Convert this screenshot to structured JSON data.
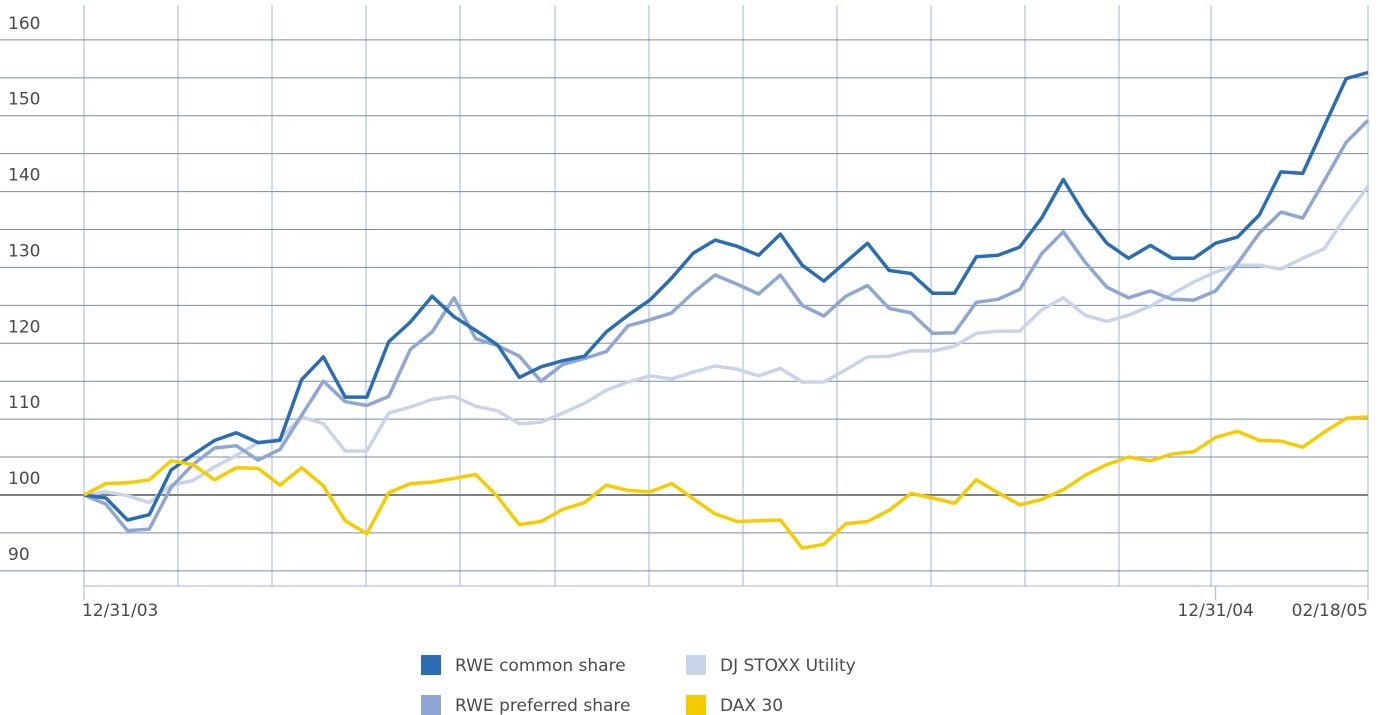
{
  "chart_data": {
    "type": "line",
    "categories": [
      "12/31/03",
      null,
      null,
      null,
      null,
      null,
      null,
      null,
      null,
      null,
      null,
      null,
      null,
      null,
      null,
      null,
      null,
      null,
      null,
      null,
      null,
      null,
      null,
      null,
      null,
      null,
      null,
      null,
      null,
      null,
      null,
      null,
      null,
      null,
      null,
      null,
      null,
      null,
      null,
      null,
      null,
      null,
      null,
      null,
      null,
      null,
      null,
      null,
      null,
      null,
      null,
      null,
      "12/31/04",
      null,
      null,
      null,
      null,
      null,
      null,
      "02/18/05"
    ],
    "series": [
      {
        "name": "RWE common share",
        "color": "#2a6db3",
        "values": [
          100,
          99.6,
          96.7,
          97.4,
          103.3,
          105.3,
          107.2,
          108.2,
          106.9,
          107.2,
          115.2,
          118.2,
          112.9,
          112.9,
          120.2,
          122.8,
          126.2,
          123.5,
          121.7,
          119.8,
          115.5,
          116.9,
          117.7,
          118.3,
          121.5,
          123.7,
          125.7,
          128.6,
          131.9,
          133.6,
          132.8,
          131.6,
          134.4,
          130.3,
          128.2,
          130.7,
          133.2,
          129.6,
          129.2,
          126.6,
          126.6,
          131.4,
          131.6,
          132.7,
          136.5,
          141.6,
          136.9,
          133.2,
          131.2,
          132.9,
          131.2,
          131.2,
          133.2,
          134.0,
          136.9,
          142.6,
          142.4,
          148.7,
          154.9,
          155.7
        ]
      },
      {
        "name": "RWE preferred share",
        "color": "#8ea6d4",
        "values": [
          100,
          98.8,
          95.3,
          95.5,
          101,
          104,
          106.2,
          106.5,
          104.6,
          106,
          110.5,
          115,
          112.3,
          111.8,
          113,
          119.2,
          121.5,
          126,
          120.6,
          119.7,
          118.3,
          115,
          117.2,
          118,
          118.9,
          122.3,
          123.1,
          124,
          126.7,
          129,
          127.8,
          126.5,
          129,
          125,
          123.6,
          126.2,
          127.6,
          124.6,
          124,
          121.3,
          121.4,
          125.4,
          125.8,
          127.1,
          131.8,
          134.7,
          130.7,
          127.4,
          126,
          126.9,
          125.8,
          125.7,
          126.9,
          130.5,
          134.5,
          137.3,
          136.5,
          141.5,
          146.5,
          149.4
        ]
      },
      {
        "name": "DJ STOXX Utility",
        "color": "#c9d4ea",
        "values": [
          100,
          100.4,
          99.9,
          99,
          101.3,
          101.9,
          103.7,
          105.2,
          106.9,
          107.4,
          110.3,
          109.4,
          105.8,
          105.8,
          110.8,
          111.6,
          112.6,
          113,
          111.7,
          111.1,
          109.4,
          109.6,
          110.8,
          112.1,
          113.8,
          114.9,
          115.7,
          115.3,
          116.2,
          117,
          116.6,
          115.7,
          116.7,
          114.9,
          114.9,
          116.5,
          118.2,
          118.3,
          119,
          119,
          119.6,
          121.3,
          121.6,
          121.6,
          124.4,
          126,
          123.7,
          122.9,
          123.7,
          124.9,
          126.5,
          128.1,
          129.4,
          130.3,
          130.3,
          129.8,
          131.2,
          132.5,
          136.8,
          140.7
        ]
      },
      {
        "name": "DAX 30",
        "color": "#f6cc00",
        "values": [
          100,
          101.5,
          101.6,
          102,
          104.5,
          104,
          102,
          103.6,
          103.5,
          101.3,
          103.6,
          101.2,
          96.6,
          94.9,
          100.3,
          101.5,
          101.7,
          102.2,
          102.7,
          99.8,
          96.1,
          96.5,
          98.1,
          99,
          101.3,
          100.6,
          100.4,
          101.5,
          99.5,
          97.5,
          96.5,
          96.6,
          96.7,
          93,
          93.5,
          96.2,
          96.5,
          98,
          100.2,
          99.6,
          98.9,
          102,
          100.3,
          98.7,
          99.4,
          100.7,
          102.6,
          104,
          105,
          104.5,
          105.4,
          105.7,
          107.6,
          108.4,
          107.2,
          107.1,
          106.3,
          108.3,
          110.1,
          110.3
        ]
      }
    ],
    "ylim": [
      88,
      164.6
    ],
    "yticks": [
      90,
      100,
      110,
      120,
      130,
      140,
      150,
      160
    ],
    "minor_yticks": [
      95,
      105,
      115,
      125,
      135,
      145,
      155
    ],
    "reference_line": 100,
    "grid": true
  }
}
